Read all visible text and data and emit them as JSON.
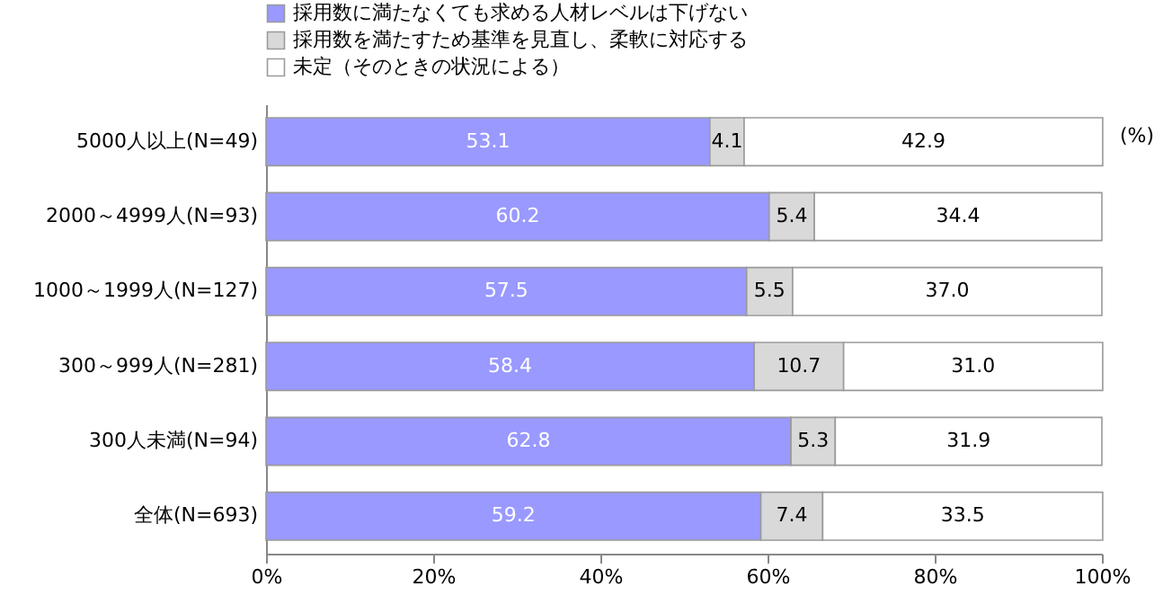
{
  "chart_data": {
    "type": "bar",
    "orientation": "horizontal",
    "stacked": true,
    "categories": [
      "5000人以上(N=49)",
      "2000～4999人(N=93)",
      "1000～1999人(N=127)",
      "300～999人(N=281)",
      "300人未満(N=94)",
      "全体(N=693)"
    ],
    "series": [
      {
        "name": "採用数に満たなくても求める人材レベルは下げない",
        "color": "#9999ff",
        "values": [
          53.1,
          60.2,
          57.5,
          58.4,
          62.8,
          59.2
        ],
        "value_labels": [
          "53.1",
          "60.2",
          "57.5",
          "58.4",
          "62.8",
          "59.2"
        ]
      },
      {
        "name": "採用数を満たすため基準を見直し、柔軟に対応する",
        "color": "#d9d9d9",
        "values": [
          4.1,
          5.4,
          5.5,
          10.7,
          5.3,
          7.4
        ],
        "value_labels": [
          "4.1",
          "5.4",
          "5.5",
          "10.7",
          "5.3",
          "7.4"
        ]
      },
      {
        "name": "未定（そのときの状況による）",
        "color": "#ffffff",
        "values": [
          42.9,
          34.4,
          37.0,
          31.0,
          31.9,
          33.5
        ],
        "value_labels": [
          "42.9",
          "34.4",
          "37.0",
          "31.0",
          "31.9",
          "33.5"
        ]
      }
    ],
    "xlim": [
      0,
      100
    ],
    "xticks": [
      {
        "value": 0,
        "label": "0%"
      },
      {
        "value": 20,
        "label": "20%"
      },
      {
        "value": 40,
        "label": "40%"
      },
      {
        "value": 60,
        "label": "60%"
      },
      {
        "value": 80,
        "label": "80%"
      },
      {
        "value": 100,
        "label": "100%"
      }
    ],
    "annotations": [
      "(%)"
    ],
    "legend": "top",
    "grid": false
  }
}
